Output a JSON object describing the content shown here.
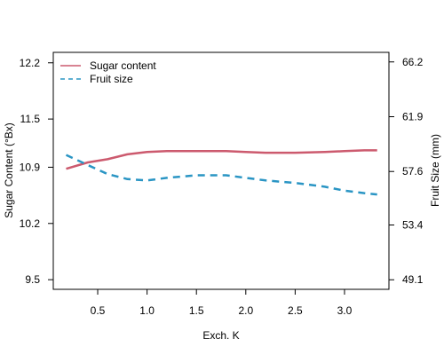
{
  "chart_data": {
    "type": "line",
    "xlabel": "Exch. K",
    "ylabel_left": "Sugar Content (°Bx)",
    "ylabel_right": "Fruit Size (mm)",
    "xlim": [
      0.05,
      3.45
    ],
    "ylim_left": [
      9.38,
      12.33
    ],
    "ylim_right": [
      48.35,
      66.95
    ],
    "x_ticks": [
      "0.5",
      "1.0",
      "1.5",
      "2.0",
      "2.5",
      "3.0"
    ],
    "x_tick_values": [
      0.5,
      1.0,
      1.5,
      2.0,
      2.5,
      3.0
    ],
    "y_left_ticks": [
      "9.5",
      "10.2",
      "10.9",
      "11.5",
      "12.2"
    ],
    "y_left_tick_values": [
      9.5,
      10.2,
      10.9,
      11.5,
      12.2
    ],
    "y_right_ticks": [
      "49.1",
      "53.4",
      "57.6",
      "61.9",
      "66.2"
    ],
    "y_right_tick_values": [
      49.1,
      53.4,
      57.6,
      61.9,
      66.2
    ],
    "legend_position": "top-left",
    "grid": false,
    "series": [
      {
        "name": "Sugar content",
        "axis": "left",
        "color": "#cc5a6e",
        "dash": "solid",
        "x": [
          0.18,
          0.4,
          0.6,
          0.8,
          1.0,
          1.2,
          1.5,
          1.8,
          2.0,
          2.2,
          2.5,
          2.8,
          3.0,
          3.2,
          3.33
        ],
        "y": [
          10.88,
          10.96,
          11.0,
          11.06,
          11.09,
          11.1,
          11.1,
          11.1,
          11.09,
          11.08,
          11.08,
          11.09,
          11.1,
          11.11,
          11.11
        ]
      },
      {
        "name": "Fruit size",
        "axis": "right",
        "color": "#2a95c4",
        "dash": "dashed",
        "x": [
          0.18,
          0.4,
          0.6,
          0.8,
          1.0,
          1.2,
          1.5,
          1.8,
          2.0,
          2.2,
          2.5,
          2.8,
          3.0,
          3.2,
          3.33
        ],
        "y": [
          58.9,
          58.1,
          57.4,
          57.0,
          56.9,
          57.1,
          57.3,
          57.3,
          57.1,
          56.9,
          56.7,
          56.4,
          56.1,
          55.9,
          55.8
        ]
      }
    ]
  }
}
